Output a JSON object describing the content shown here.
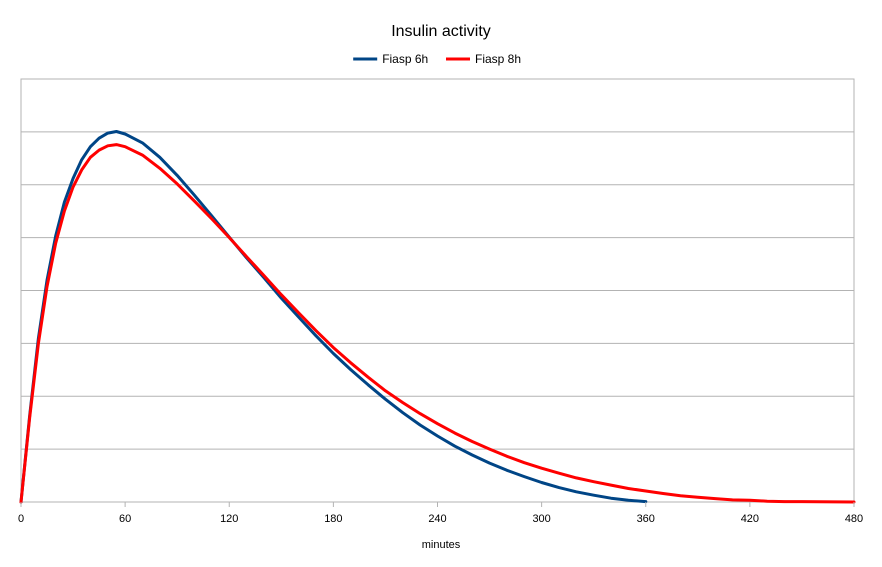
{
  "chart_data": {
    "type": "line",
    "title": "Insulin activity",
    "xlabel": "minutes",
    "ylabel": "",
    "xlim": [
      0,
      480
    ],
    "ylim": [
      0,
      1
    ],
    "x_ticks": [
      0,
      60,
      120,
      180,
      240,
      300,
      360,
      420,
      480
    ],
    "x_tick_labels": [
      "0",
      "60",
      "120",
      "180",
      "240",
      "300",
      "360",
      "420",
      "480"
    ],
    "y_tick_labels_shown": false,
    "y_gridlines": 8,
    "grid": true,
    "legend": "top",
    "series": [
      {
        "name": "Fiasp 6h",
        "color": "#004586",
        "x": [
          0,
          5,
          10,
          15,
          20,
          25,
          30,
          35,
          40,
          45,
          50,
          55,
          60,
          70,
          80,
          90,
          100,
          110,
          120,
          130,
          140,
          150,
          160,
          170,
          180,
          190,
          200,
          210,
          220,
          230,
          240,
          250,
          260,
          270,
          280,
          290,
          300,
          310,
          320,
          330,
          340,
          350,
          360
        ],
        "y": [
          0.0,
          0.205,
          0.387,
          0.524,
          0.629,
          0.709,
          0.765,
          0.809,
          0.84,
          0.86,
          0.872,
          0.876,
          0.87,
          0.849,
          0.815,
          0.772,
          0.725,
          0.676,
          0.626,
          0.577,
          0.53,
          0.482,
          0.437,
          0.393,
          0.351,
          0.313,
          0.277,
          0.243,
          0.211,
          0.182,
          0.156,
          0.132,
          0.111,
          0.092,
          0.075,
          0.06,
          0.046,
          0.034,
          0.024,
          0.016,
          0.009,
          0.004,
          0.001
        ]
      },
      {
        "name": "Fiasp 8h",
        "color": "#ff0000",
        "x": [
          0,
          5,
          10,
          15,
          20,
          25,
          30,
          35,
          40,
          45,
          50,
          55,
          60,
          70,
          80,
          90,
          100,
          110,
          120,
          130,
          140,
          150,
          160,
          170,
          180,
          190,
          200,
          210,
          220,
          230,
          240,
          250,
          260,
          270,
          280,
          290,
          300,
          310,
          320,
          330,
          340,
          350,
          360,
          370,
          380,
          390,
          400,
          410,
          420,
          430,
          440,
          450,
          460,
          470,
          480
        ],
        "y": [
          0.0,
          0.2,
          0.375,
          0.509,
          0.612,
          0.688,
          0.745,
          0.785,
          0.815,
          0.832,
          0.842,
          0.845,
          0.84,
          0.82,
          0.789,
          0.752,
          0.711,
          0.669,
          0.625,
          0.58,
          0.535,
          0.49,
          0.447,
          0.405,
          0.365,
          0.329,
          0.295,
          0.263,
          0.235,
          0.209,
          0.185,
          0.163,
          0.143,
          0.125,
          0.108,
          0.093,
          0.08,
          0.068,
          0.057,
          0.048,
          0.04,
          0.032,
          0.026,
          0.02,
          0.015,
          0.011,
          0.008,
          0.005,
          0.004,
          0.002,
          0.001,
          0.001,
          0.0005,
          0.0002,
          0.0
        ]
      }
    ]
  }
}
